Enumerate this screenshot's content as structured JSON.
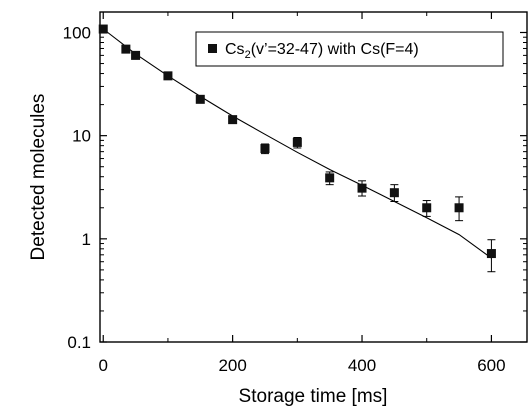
{
  "chart_data": {
    "type": "scatter",
    "xlabel": "Storage time [ms]",
    "ylabel": "Detected molecules",
    "xlim": [
      -5,
      655
    ],
    "ylim": [
      0.1,
      158
    ],
    "y_scale": "log",
    "grid": false,
    "legend_position": "top-right",
    "x_ticks": [
      0,
      200,
      400,
      600
    ],
    "x_tick_labels": [
      "0",
      "200",
      "400",
      "600"
    ],
    "y_ticks": [
      0.1,
      1,
      10,
      100
    ],
    "y_tick_labels": [
      "0.1",
      "1",
      "10",
      "100"
    ],
    "legend": {
      "marker": "filled-square",
      "text_main": "Cs",
      "text_sub": "2",
      "text_rest": "(v’=32-47) with Cs(F=4)"
    },
    "series": [
      {
        "kind": "points-with-error-bars",
        "points": [
          {
            "x": 0,
            "y": 108,
            "err_lo": 0,
            "err_hi": 0
          },
          {
            "x": 35,
            "y": 69,
            "err_lo": 0,
            "err_hi": 0
          },
          {
            "x": 50,
            "y": 60,
            "err_lo": 0,
            "err_hi": 0
          },
          {
            "x": 100,
            "y": 38,
            "err_lo": 0,
            "err_hi": 0
          },
          {
            "x": 150,
            "y": 22.5,
            "err_lo": 0,
            "err_hi": 0
          },
          {
            "x": 200,
            "y": 14.3,
            "err_lo": 0,
            "err_hi": 0
          },
          {
            "x": 250,
            "y": 7.5,
            "err_lo": 0.8,
            "err_hi": 0.8
          },
          {
            "x": 300,
            "y": 8.6,
            "err_lo": 1.0,
            "err_hi": 1.0
          },
          {
            "x": 350,
            "y": 3.9,
            "err_lo": 0.55,
            "err_hi": 0.55
          },
          {
            "x": 400,
            "y": 3.1,
            "err_lo": 0.5,
            "err_hi": 0.55
          },
          {
            "x": 450,
            "y": 2.8,
            "err_lo": 0.5,
            "err_hi": 0.55
          },
          {
            "x": 500,
            "y": 2.0,
            "err_lo": 0.35,
            "err_hi": 0.35
          },
          {
            "x": 550,
            "y": 2.0,
            "err_lo": 0.5,
            "err_hi": 0.55
          },
          {
            "x": 600,
            "y": 0.72,
            "err_lo": 0.24,
            "err_hi": 0.26
          }
        ]
      },
      {
        "kind": "fit-line",
        "x": [
          0,
          50,
          100,
          150,
          200,
          250,
          300,
          350,
          400,
          450,
          500,
          550,
          600
        ],
        "y": [
          108,
          62,
          38,
          24,
          15.5,
          10.3,
          6.9,
          4.7,
          3.3,
          2.3,
          1.6,
          1.1,
          0.65
        ]
      }
    ]
  }
}
